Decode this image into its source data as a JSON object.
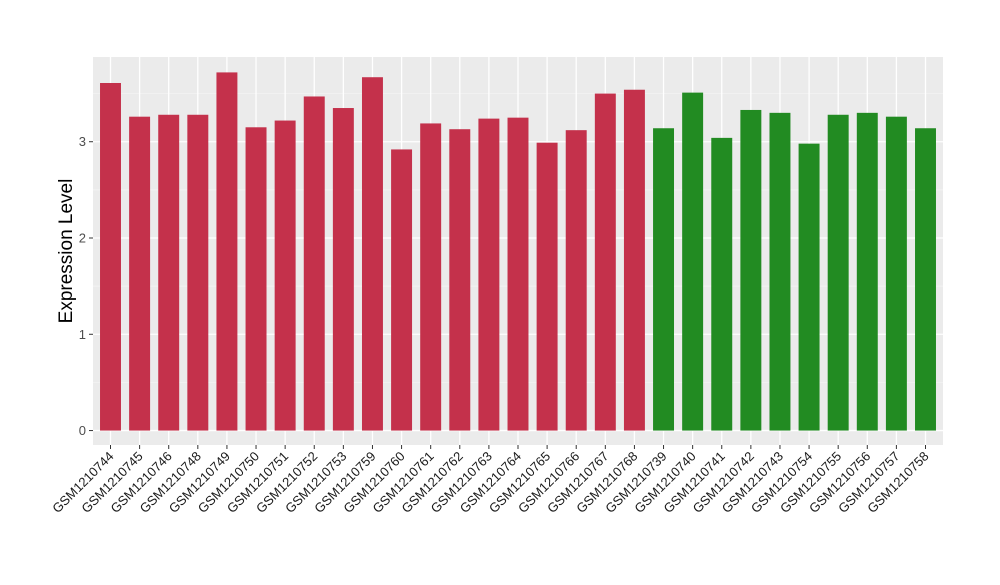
{
  "chart_data": {
    "type": "bar",
    "title": "",
    "xlabel": "",
    "ylabel": "Expression Level",
    "ylim": [
      -0.15,
      3.88
    ],
    "yticks": [
      0,
      1,
      2,
      3
    ],
    "grid": true,
    "panel_background": "#ebebeb",
    "categories": [
      "GSM1210744",
      "GSM1210745",
      "GSM1210746",
      "GSM1210748",
      "GSM1210749",
      "GSM1210750",
      "GSM1210751",
      "GSM1210752",
      "GSM1210753",
      "GSM1210759",
      "GSM1210760",
      "GSM1210761",
      "GSM1210762",
      "GSM1210763",
      "GSM1210764",
      "GSM1210765",
      "GSM1210766",
      "GSM1210767",
      "GSM1210768",
      "GSM1210739",
      "GSM1210740",
      "GSM1210741",
      "GSM1210742",
      "GSM1210743",
      "GSM1210754",
      "GSM1210755",
      "GSM1210756",
      "GSM1210757",
      "GSM1210758"
    ],
    "values": [
      3.61,
      3.26,
      3.28,
      3.28,
      3.72,
      3.15,
      3.22,
      3.47,
      3.35,
      3.67,
      2.92,
      3.19,
      3.13,
      3.24,
      3.25,
      2.99,
      3.12,
      3.5,
      3.54,
      3.14,
      3.51,
      3.04,
      3.33,
      3.3,
      2.98,
      3.28,
      3.3,
      3.26,
      3.14
    ],
    "bar_colors": [
      "#c4314b",
      "#c4314b",
      "#c4314b",
      "#c4314b",
      "#c4314b",
      "#c4314b",
      "#c4314b",
      "#c4314b",
      "#c4314b",
      "#c4314b",
      "#c4314b",
      "#c4314b",
      "#c4314b",
      "#c4314b",
      "#c4314b",
      "#c4314b",
      "#c4314b",
      "#c4314b",
      "#c4314b",
      "#228b22",
      "#228b22",
      "#228b22",
      "#228b22",
      "#228b22",
      "#228b22",
      "#228b22",
      "#228b22",
      "#228b22",
      "#228b22"
    ]
  }
}
